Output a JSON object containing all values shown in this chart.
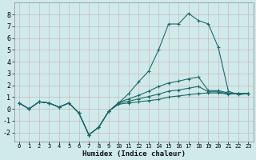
{
  "title": "",
  "xlabel": "Humidex (Indice chaleur)",
  "background_color": "#d0eaeb",
  "grid_color": "#c8b8b8",
  "line_color": "#1a6b6b",
  "xlim": [
    -0.5,
    23.5
  ],
  "ylim": [
    -2.8,
    9.0
  ],
  "xticks": [
    0,
    1,
    2,
    3,
    4,
    5,
    6,
    7,
    8,
    9,
    10,
    11,
    12,
    13,
    14,
    15,
    16,
    17,
    18,
    19,
    20,
    21,
    22,
    23
  ],
  "yticks": [
    -2,
    -1,
    0,
    1,
    2,
    3,
    4,
    5,
    6,
    7,
    8
  ],
  "lines": [
    {
      "x": [
        0,
        1,
        2,
        3,
        4,
        5,
        6,
        7,
        8,
        9,
        10,
        11,
        12,
        13,
        14,
        15,
        16,
        17,
        18,
        19,
        20,
        21,
        22,
        23
      ],
      "y": [
        0.5,
        0.0,
        0.6,
        0.5,
        0.15,
        0.5,
        -0.35,
        -2.2,
        -1.55,
        -0.2,
        0.5,
        1.3,
        2.3,
        3.2,
        5.0,
        7.2,
        7.2,
        8.1,
        7.5,
        7.2,
        5.2,
        1.5,
        1.2,
        1.3
      ]
    },
    {
      "x": [
        0,
        1,
        2,
        3,
        4,
        5,
        6,
        7,
        8,
        9,
        10,
        11,
        12,
        13,
        14,
        15,
        16,
        17,
        18,
        19,
        20,
        21,
        22,
        23
      ],
      "y": [
        0.5,
        0.0,
        0.6,
        0.5,
        0.15,
        0.5,
        -0.35,
        -2.2,
        -1.55,
        -0.2,
        0.55,
        0.85,
        1.15,
        1.5,
        1.9,
        2.2,
        2.35,
        2.55,
        2.7,
        1.55,
        1.55,
        1.35,
        1.3,
        1.3
      ]
    },
    {
      "x": [
        0,
        1,
        2,
        3,
        4,
        5,
        6,
        7,
        8,
        9,
        10,
        11,
        12,
        13,
        14,
        15,
        16,
        17,
        18,
        19,
        20,
        21,
        22,
        23
      ],
      "y": [
        0.5,
        0.0,
        0.6,
        0.5,
        0.15,
        0.5,
        -0.35,
        -2.2,
        -1.55,
        -0.2,
        0.5,
        0.65,
        0.85,
        1.05,
        1.25,
        1.5,
        1.6,
        1.75,
        1.9,
        1.45,
        1.45,
        1.3,
        1.3,
        1.3
      ]
    },
    {
      "x": [
        0,
        1,
        2,
        3,
        4,
        5,
        6,
        7,
        8,
        9,
        10,
        11,
        12,
        13,
        14,
        15,
        16,
        17,
        18,
        19,
        20,
        21,
        22,
        23
      ],
      "y": [
        0.5,
        0.0,
        0.6,
        0.5,
        0.15,
        0.5,
        -0.35,
        -2.2,
        -1.55,
        -0.2,
        0.4,
        0.5,
        0.6,
        0.7,
        0.8,
        1.0,
        1.1,
        1.2,
        1.3,
        1.35,
        1.35,
        1.25,
        1.3,
        1.3
      ]
    }
  ],
  "xlabel_fontsize": 6.5,
  "tick_fontsize_x": 5.0,
  "tick_fontsize_y": 6.0
}
